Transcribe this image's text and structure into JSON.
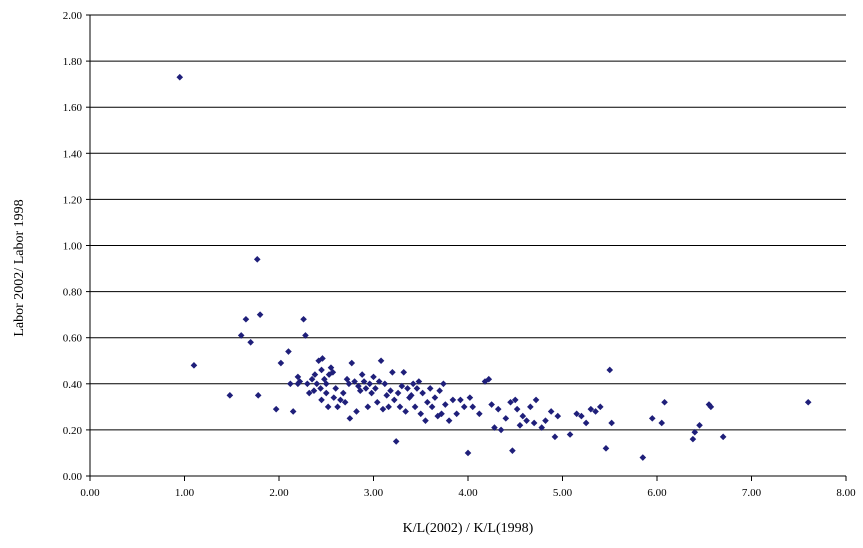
{
  "chart_data": {
    "type": "scatter",
    "xlabel": "K/L(2002) / K/L(1998)",
    "ylabel": "Labor 2002/ Labor 1998",
    "xlim": [
      0,
      8
    ],
    "ylim": [
      0,
      2
    ],
    "xticks": [
      "0.00",
      "1.00",
      "2.00",
      "3.00",
      "4.00",
      "5.00",
      "6.00",
      "7.00",
      "8.00"
    ],
    "yticks": [
      "0.00",
      "0.20",
      "0.40",
      "0.60",
      "0.80",
      "1.00",
      "1.20",
      "1.40",
      "1.60",
      "1.80",
      "2.00"
    ],
    "grid": "horizontal",
    "legend": "none",
    "marker_color": "#1f1f7a",
    "points": [
      [
        0.95,
        1.73
      ],
      [
        1.1,
        0.48
      ],
      [
        1.48,
        0.35
      ],
      [
        1.6,
        0.61
      ],
      [
        1.65,
        0.68
      ],
      [
        1.7,
        0.58
      ],
      [
        1.77,
        0.94
      ],
      [
        1.78,
        0.35
      ],
      [
        1.8,
        0.7
      ],
      [
        1.97,
        0.29
      ],
      [
        2.02,
        0.49
      ],
      [
        2.1,
        0.54
      ],
      [
        2.12,
        0.4
      ],
      [
        2.15,
        0.28
      ],
      [
        2.2,
        0.43
      ],
      [
        2.2,
        0.4
      ],
      [
        2.22,
        0.41
      ],
      [
        2.26,
        0.68
      ],
      [
        2.28,
        0.61
      ],
      [
        2.3,
        0.4
      ],
      [
        2.32,
        0.36
      ],
      [
        2.35,
        0.42
      ],
      [
        2.37,
        0.37
      ],
      [
        2.38,
        0.44
      ],
      [
        2.4,
        0.4
      ],
      [
        2.42,
        0.5
      ],
      [
        2.44,
        0.38
      ],
      [
        2.45,
        0.46
      ],
      [
        2.45,
        0.33
      ],
      [
        2.46,
        0.51
      ],
      [
        2.48,
        0.42
      ],
      [
        2.5,
        0.4
      ],
      [
        2.5,
        0.36
      ],
      [
        2.52,
        0.3
      ],
      [
        2.53,
        0.44
      ],
      [
        2.55,
        0.47
      ],
      [
        2.57,
        0.45
      ],
      [
        2.58,
        0.34
      ],
      [
        2.6,
        0.38
      ],
      [
        2.62,
        0.3
      ],
      [
        2.65,
        0.33
      ],
      [
        2.68,
        0.36
      ],
      [
        2.7,
        0.32
      ],
      [
        2.72,
        0.42
      ],
      [
        2.74,
        0.4
      ],
      [
        2.75,
        0.25
      ],
      [
        2.77,
        0.49
      ],
      [
        2.8,
        0.41
      ],
      [
        2.82,
        0.28
      ],
      [
        2.84,
        0.39
      ],
      [
        2.86,
        0.37
      ],
      [
        2.88,
        0.44
      ],
      [
        2.9,
        0.41
      ],
      [
        2.92,
        0.38
      ],
      [
        2.94,
        0.3
      ],
      [
        2.96,
        0.4
      ],
      [
        2.98,
        0.36
      ],
      [
        3.0,
        0.43
      ],
      [
        3.02,
        0.38
      ],
      [
        3.04,
        0.32
      ],
      [
        3.06,
        0.41
      ],
      [
        3.08,
        0.5
      ],
      [
        3.1,
        0.29
      ],
      [
        3.12,
        0.4
      ],
      [
        3.14,
        0.35
      ],
      [
        3.16,
        0.3
      ],
      [
        3.18,
        0.37
      ],
      [
        3.2,
        0.45
      ],
      [
        3.22,
        0.33
      ],
      [
        3.24,
        0.15
      ],
      [
        3.26,
        0.36
      ],
      [
        3.28,
        0.3
      ],
      [
        3.3,
        0.39
      ],
      [
        3.32,
        0.45
      ],
      [
        3.34,
        0.28
      ],
      [
        3.36,
        0.38
      ],
      [
        3.38,
        0.34
      ],
      [
        3.4,
        0.35
      ],
      [
        3.42,
        0.4
      ],
      [
        3.44,
        0.3
      ],
      [
        3.46,
        0.38
      ],
      [
        3.48,
        0.41
      ],
      [
        3.5,
        0.27
      ],
      [
        3.52,
        0.36
      ],
      [
        3.55,
        0.24
      ],
      [
        3.57,
        0.32
      ],
      [
        3.6,
        0.38
      ],
      [
        3.62,
        0.3
      ],
      [
        3.65,
        0.34
      ],
      [
        3.68,
        0.26
      ],
      [
        3.7,
        0.37
      ],
      [
        3.72,
        0.27
      ],
      [
        3.74,
        0.4
      ],
      [
        3.76,
        0.31
      ],
      [
        3.8,
        0.24
      ],
      [
        3.84,
        0.33
      ],
      [
        3.88,
        0.27
      ],
      [
        3.92,
        0.33
      ],
      [
        3.96,
        0.3
      ],
      [
        4.0,
        0.1
      ],
      [
        4.02,
        0.34
      ],
      [
        4.05,
        0.3
      ],
      [
        4.12,
        0.27
      ],
      [
        4.18,
        0.41
      ],
      [
        4.22,
        0.42
      ],
      [
        4.25,
        0.31
      ],
      [
        4.28,
        0.21
      ],
      [
        4.32,
        0.29
      ],
      [
        4.35,
        0.2
      ],
      [
        4.4,
        0.25
      ],
      [
        4.45,
        0.32
      ],
      [
        4.47,
        0.11
      ],
      [
        4.5,
        0.33
      ],
      [
        4.52,
        0.29
      ],
      [
        4.55,
        0.22
      ],
      [
        4.58,
        0.26
      ],
      [
        4.62,
        0.24
      ],
      [
        4.66,
        0.3
      ],
      [
        4.7,
        0.23
      ],
      [
        4.72,
        0.33
      ],
      [
        4.78,
        0.21
      ],
      [
        4.82,
        0.24
      ],
      [
        4.88,
        0.28
      ],
      [
        4.92,
        0.17
      ],
      [
        4.95,
        0.26
      ],
      [
        5.08,
        0.18
      ],
      [
        5.15,
        0.27
      ],
      [
        5.2,
        0.26
      ],
      [
        5.25,
        0.23
      ],
      [
        5.3,
        0.29
      ],
      [
        5.35,
        0.28
      ],
      [
        5.4,
        0.3
      ],
      [
        5.46,
        0.12
      ],
      [
        5.5,
        0.46
      ],
      [
        5.52,
        0.23
      ],
      [
        5.85,
        0.08
      ],
      [
        5.95,
        0.25
      ],
      [
        6.05,
        0.23
      ],
      [
        6.08,
        0.32
      ],
      [
        6.38,
        0.16
      ],
      [
        6.4,
        0.19
      ],
      [
        6.45,
        0.22
      ],
      [
        6.55,
        0.31
      ],
      [
        6.57,
        0.3
      ],
      [
        6.7,
        0.17
      ],
      [
        7.6,
        0.32
      ]
    ]
  }
}
